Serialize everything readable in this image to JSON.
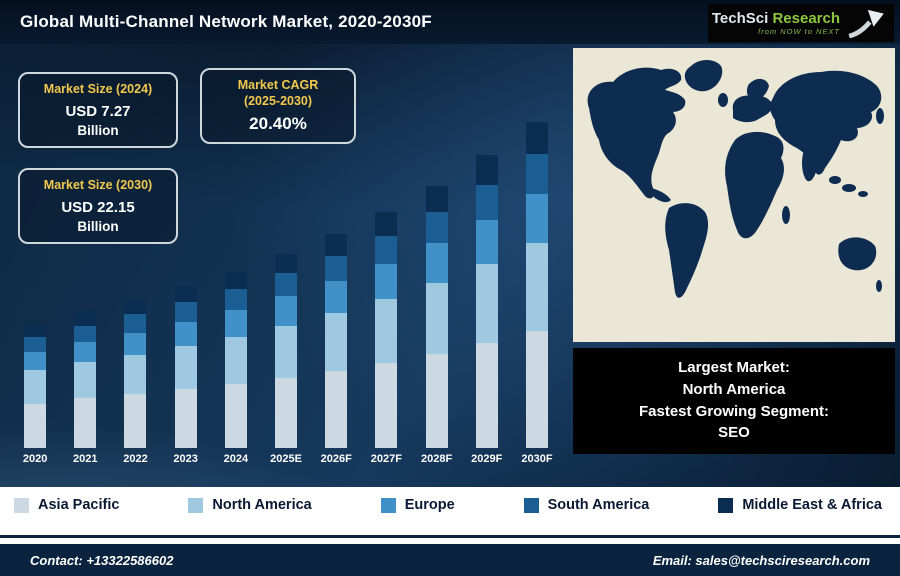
{
  "title": "Global Multi-Channel Network Market, 2020-2030F",
  "logo": {
    "name1": "TechSci",
    "name2": "Research",
    "tagline": "from NOW to NEXT"
  },
  "info_boxes": {
    "size2024": {
      "heading": "Market Size (2024)",
      "value": "USD 7.27",
      "unit": "Billion"
    },
    "cagr": {
      "heading": "Market CAGR",
      "heading2": "(2025-2030)",
      "value": "20.40%"
    },
    "size2030": {
      "heading": "Market Size (2030)",
      "value": "USD 22.15",
      "unit": "Billion"
    }
  },
  "map": {
    "ocean_color": "#eae7d6",
    "land_color": "#0e2b50"
  },
  "highlight": {
    "line1": "Largest Market:",
    "line2": "North America",
    "line3": "Fastest Growing Segment:",
    "line4": "SEO"
  },
  "footer": {
    "contact": "Contact: +13322586602",
    "email": "Email: sales@techsciresearch.com"
  },
  "colors": {
    "accent_yellow": "#f2c94c",
    "background_navy": "#0d2740",
    "footer_navy": "#0a2440",
    "legend_text": "#0a1a33"
  },
  "chart_data": {
    "type": "stacked-bar",
    "title": "Global Multi-Channel Network Market, 2020-2030F",
    "categories": [
      "2020",
      "2021",
      "2022",
      "2023",
      "2024",
      "2025E",
      "2026F",
      "2027F",
      "2028F",
      "2029F",
      "2030F"
    ],
    "series": [
      {
        "name": "Asia Pacific",
        "color": "#ccd9e2",
        "values": [
          44,
          49,
          53,
          58,
          63,
          69,
          76,
          84,
          93,
          104,
          116
        ]
      },
      {
        "name": "North America",
        "color": "#9fc9e0",
        "values": [
          33,
          36,
          39,
          43,
          47,
          52,
          57,
          63,
          70,
          78,
          87
        ]
      },
      {
        "name": "Europe",
        "color": "#4191c9",
        "values": [
          18,
          20,
          22,
          24,
          26,
          29,
          32,
          35,
          39,
          43,
          48
        ]
      },
      {
        "name": "South America",
        "color": "#1b5e93",
        "values": [
          15,
          16,
          18,
          19,
          21,
          23,
          25,
          28,
          31,
          35,
          39
        ]
      },
      {
        "name": "Middle East & Africa",
        "color": "#0b2d52",
        "values": [
          12,
          14,
          15,
          16,
          17,
          19,
          21,
          23,
          26,
          29,
          32
        ]
      }
    ],
    "y_axis_shown": false,
    "value_unit": "relative height (no y-axis shown in source)",
    "known_points": {
      "total_2024_usd_billion": 7.27,
      "total_2030_usd_billion": 22.15,
      "cagr_2025_2030_percent": 20.4
    },
    "legend_position": "bottom",
    "grid": false
  }
}
